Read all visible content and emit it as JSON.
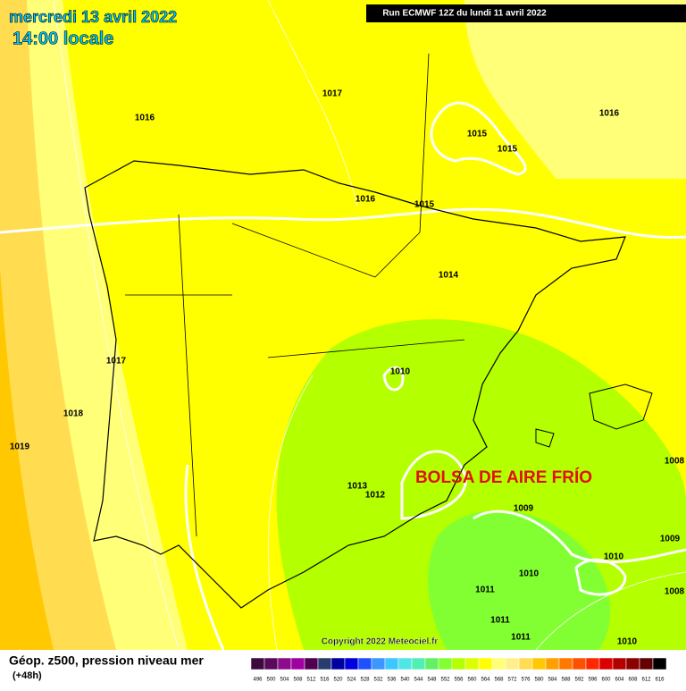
{
  "header": {
    "date": "mercredi 13 avril 2022",
    "time": "14:00 locale",
    "run": "Run ECMWF 12Z du lundi 11 avril 2022"
  },
  "isobar_labels": [
    "1017",
    "1016",
    "1016",
    "1015",
    "1015",
    "1016",
    "1015",
    "1014",
    "1017",
    "1010",
    "1018",
    "1019",
    "1013",
    "1012",
    "1009",
    "1008",
    "1009",
    "1010",
    "1010",
    "1011",
    "1008",
    "1011",
    "1011",
    "1010"
  ],
  "annotation": "BOLSA DE AIRE FRÍO",
  "copyright": "Copyright 2022 Meteociel.fr",
  "footer": {
    "title": "Géop. z500, pression niveau mer",
    "lead": "(+48h)"
  },
  "legend": {
    "labels": [
      "496",
      "500",
      "504",
      "508",
      "512",
      "516",
      "520",
      "524",
      "528",
      "532",
      "536",
      "540",
      "544",
      "548",
      "552",
      "556",
      "560",
      "564",
      "568",
      "572",
      "576",
      "580",
      "584",
      "588",
      "592",
      "596",
      "600",
      "604",
      "608",
      "612",
      "616"
    ],
    "colors": [
      "#3c0a3c",
      "#5a0a5a",
      "#8c0a8c",
      "#a000a0",
      "#500050",
      "#283c6e",
      "#0000a0",
      "#0000dc",
      "#1e50ff",
      "#3c96ff",
      "#3cc8ff",
      "#50e6e6",
      "#50f0b4",
      "#64f064",
      "#82ff32",
      "#b4ff00",
      "#dcff00",
      "#ffff00",
      "#ffff78",
      "#fff08c",
      "#ffdc50",
      "#ffc800",
      "#ffa000",
      "#ff7800",
      "#ff5000",
      "#ff2800",
      "#dc0000",
      "#b40000",
      "#8c0000",
      "#640000",
      "#000000"
    ]
  }
}
